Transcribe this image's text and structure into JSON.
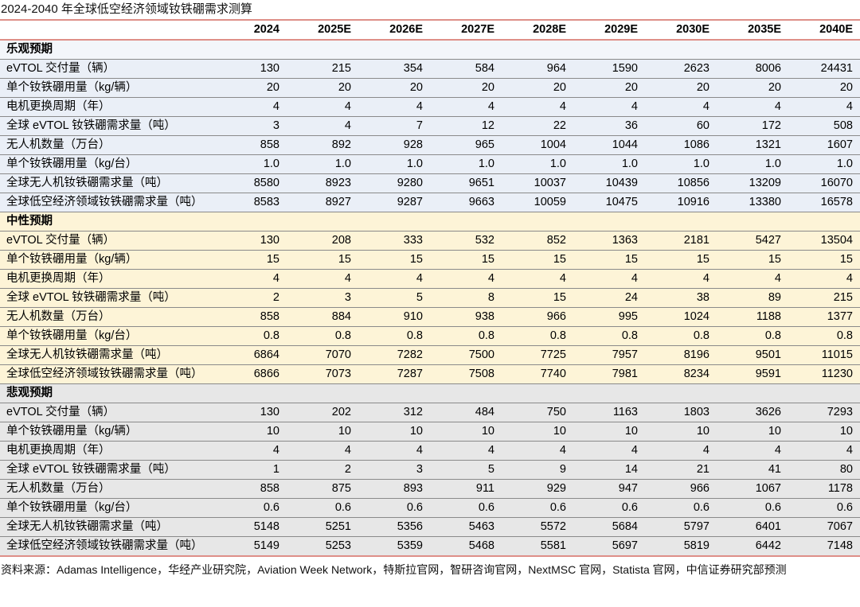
{
  "title": "2024-2040 年全球低空经济领域钕铁硼需求测算",
  "source_note": "资料来源：Adamas Intelligence，华经产业研究院，Aviation Week Network，特斯拉官网，智研咨询官网，NextMSC 官网，Statista 官网，中信证券研究部预测",
  "colors": {
    "rule_accent": "#DE8F88",
    "row_separator": "#8a8a8a",
    "optimistic_bg": "#EAEFF7",
    "neutral_bg": "#FDF4D7",
    "pessimistic_bg": "#E7E7E7",
    "text": "#000000"
  },
  "table": {
    "columns": [
      "2024",
      "2025E",
      "2026E",
      "2027E",
      "2028E",
      "2029E",
      "2030E",
      "2035E",
      "2040E"
    ],
    "sections": [
      {
        "name": "乐观预期",
        "theme": "blue",
        "rows": [
          {
            "label": "eVTOL 交付量（辆）",
            "values": [
              "130",
              "215",
              "354",
              "584",
              "964",
              "1590",
              "2623",
              "8006",
              "24431"
            ]
          },
          {
            "label": "单个钕铁硼用量（kg/辆）",
            "values": [
              "20",
              "20",
              "20",
              "20",
              "20",
              "20",
              "20",
              "20",
              "20"
            ]
          },
          {
            "label": "电机更换周期（年）",
            "values": [
              "4",
              "4",
              "4",
              "4",
              "4",
              "4",
              "4",
              "4",
              "4"
            ]
          },
          {
            "label": "全球 eVTOL 钕铁硼需求量（吨）",
            "values": [
              "3",
              "4",
              "7",
              "12",
              "22",
              "36",
              "60",
              "172",
              "508"
            ]
          },
          {
            "label": "无人机数量（万台）",
            "values": [
              "858",
              "892",
              "928",
              "965",
              "1004",
              "1044",
              "1086",
              "1321",
              "1607"
            ]
          },
          {
            "label": "单个钕铁硼用量（kg/台）",
            "values": [
              "1.0",
              "1.0",
              "1.0",
              "1.0",
              "1.0",
              "1.0",
              "1.0",
              "1.0",
              "1.0"
            ]
          },
          {
            "label": "全球无人机钕铁硼需求量（吨）",
            "values": [
              "8580",
              "8923",
              "9280",
              "9651",
              "10037",
              "10439",
              "10856",
              "13209",
              "16070"
            ]
          },
          {
            "label": "全球低空经济领域钕铁硼需求量（吨）",
            "values": [
              "8583",
              "8927",
              "9287",
              "9663",
              "10059",
              "10475",
              "10916",
              "13380",
              "16578"
            ]
          }
        ]
      },
      {
        "name": "中性预期",
        "theme": "yellow",
        "rows": [
          {
            "label": "eVTOL 交付量（辆）",
            "values": [
              "130",
              "208",
              "333",
              "532",
              "852",
              "1363",
              "2181",
              "5427",
              "13504"
            ]
          },
          {
            "label": "单个钕铁硼用量（kg/辆）",
            "values": [
              "15",
              "15",
              "15",
              "15",
              "15",
              "15",
              "15",
              "15",
              "15"
            ]
          },
          {
            "label": "电机更换周期（年）",
            "values": [
              "4",
              "4",
              "4",
              "4",
              "4",
              "4",
              "4",
              "4",
              "4"
            ]
          },
          {
            "label": "全球 eVTOL 钕铁硼需求量（吨）",
            "values": [
              "2",
              "3",
              "5",
              "8",
              "15",
              "24",
              "38",
              "89",
              "215"
            ]
          },
          {
            "label": "无人机数量（万台）",
            "values": [
              "858",
              "884",
              "910",
              "938",
              "966",
              "995",
              "1024",
              "1188",
              "1377"
            ]
          },
          {
            "label": "单个钕铁硼用量（kg/台）",
            "values": [
              "0.8",
              "0.8",
              "0.8",
              "0.8",
              "0.8",
              "0.8",
              "0.8",
              "0.8",
              "0.8"
            ]
          },
          {
            "label": "全球无人机钕铁硼需求量（吨）",
            "values": [
              "6864",
              "7070",
              "7282",
              "7500",
              "7725",
              "7957",
              "8196",
              "9501",
              "11015"
            ]
          },
          {
            "label": "全球低空经济领域钕铁硼需求量（吨）",
            "values": [
              "6866",
              "7073",
              "7287",
              "7508",
              "7740",
              "7981",
              "8234",
              "9591",
              "11230"
            ]
          }
        ]
      },
      {
        "name": "悲观预期",
        "theme": "gray",
        "rows": [
          {
            "label": "eVTOL 交付量（辆）",
            "values": [
              "130",
              "202",
              "312",
              "484",
              "750",
              "1163",
              "1803",
              "3626",
              "7293"
            ]
          },
          {
            "label": "单个钕铁硼用量（kg/辆）",
            "values": [
              "10",
              "10",
              "10",
              "10",
              "10",
              "10",
              "10",
              "10",
              "10"
            ]
          },
          {
            "label": "电机更换周期（年）",
            "values": [
              "4",
              "4",
              "4",
              "4",
              "4",
              "4",
              "4",
              "4",
              "4"
            ]
          },
          {
            "label": "全球 eVTOL 钕铁硼需求量（吨）",
            "values": [
              "1",
              "2",
              "3",
              "5",
              "9",
              "14",
              "21",
              "41",
              "80"
            ]
          },
          {
            "label": "无人机数量（万台）",
            "values": [
              "858",
              "875",
              "893",
              "911",
              "929",
              "947",
              "966",
              "1067",
              "1178"
            ]
          },
          {
            "label": "单个钕铁硼用量（kg/台）",
            "values": [
              "0.6",
              "0.6",
              "0.6",
              "0.6",
              "0.6",
              "0.6",
              "0.6",
              "0.6",
              "0.6"
            ]
          },
          {
            "label": "全球无人机钕铁硼需求量（吨）",
            "values": [
              "5148",
              "5251",
              "5356",
              "5463",
              "5572",
              "5684",
              "5797",
              "6401",
              "7067"
            ]
          },
          {
            "label": "全球低空经济领域钕铁硼需求量（吨）",
            "values": [
              "5149",
              "5253",
              "5359",
              "5468",
              "5581",
              "5697",
              "5819",
              "6442",
              "7148"
            ]
          }
        ]
      }
    ]
  }
}
